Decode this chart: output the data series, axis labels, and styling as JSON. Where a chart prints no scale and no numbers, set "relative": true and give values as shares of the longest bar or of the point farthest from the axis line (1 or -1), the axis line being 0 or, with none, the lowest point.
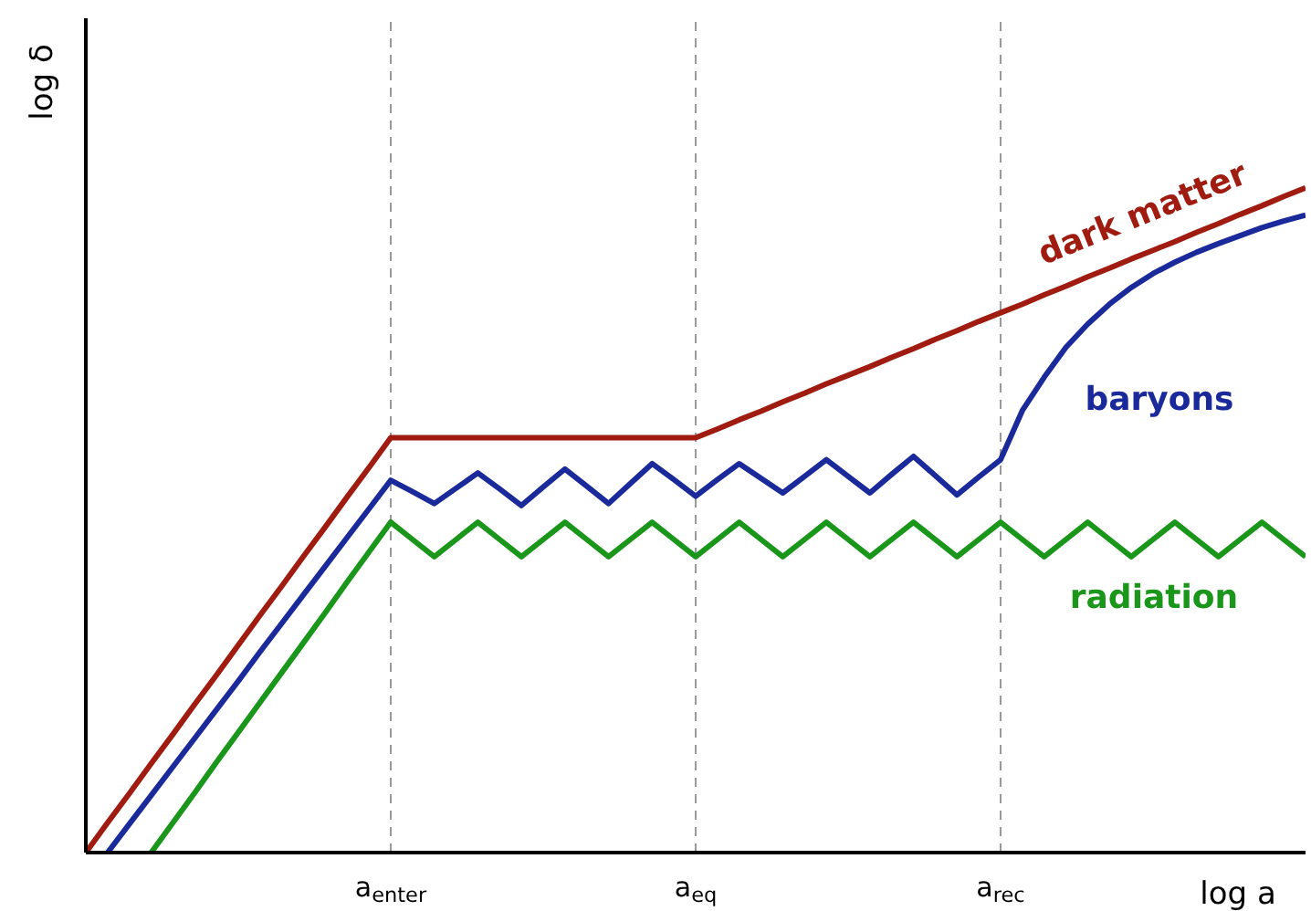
{
  "chart_data": {
    "type": "line",
    "relative": true,
    "xlabel": "log a",
    "ylabel": "log δ",
    "categories": [
      null,
      null,
      null,
      null,
      null,
      null,
      null,
      null,
      null,
      null,
      null,
      null,
      null,
      null,
      "a$_{enter}$",
      null,
      null,
      null,
      null,
      null,
      null,
      null,
      null,
      null,
      null,
      null,
      null,
      null,
      "a$_{eq}$",
      null,
      null,
      null,
      null,
      null,
      null,
      null,
      null,
      null,
      null,
      null,
      null,
      null,
      "a$_{rec}$",
      null,
      null,
      null,
      null,
      null,
      null,
      null,
      null,
      null,
      null,
      null,
      null,
      null,
      null
    ],
    "ref_lines": [
      {
        "axis": "x",
        "value": "a$_{enter}$",
        "color": "#999999",
        "line_style": "dashed"
      },
      {
        "axis": "x",
        "value": "a$_{eq}$",
        "color": "#999999",
        "line_style": "dashed"
      },
      {
        "axis": "x",
        "value": "a$_{rec}$",
        "color": "#999999",
        "line_style": "dashed"
      }
    ],
    "series": [
      {
        "name": "dark matter",
        "color": "#a01c10",
        "values": [
          0,
          0.045,
          0.089,
          0.134,
          0.178,
          0.223,
          0.267,
          0.312,
          0.357,
          0.401,
          0.446,
          0.49,
          0.535,
          0.579,
          0.624,
          0.624,
          0.624,
          0.624,
          0.624,
          0.624,
          0.624,
          0.624,
          0.624,
          0.624,
          0.624,
          0.624,
          0.624,
          0.624,
          0.624,
          0.637,
          0.651,
          0.664,
          0.678,
          0.691,
          0.705,
          0.718,
          0.731,
          0.745,
          0.758,
          0.772,
          0.785,
          0.799,
          0.812,
          0.825,
          0.839,
          0.852,
          0.866,
          0.879,
          0.893,
          0.906,
          0.919,
          0.933,
          0.946,
          0.96,
          0.973,
          0.987,
          1.0
        ]
      },
      {
        "name": "baryons",
        "color": "#1a2a9a",
        "values": [
          null,
          0,
          0.043,
          0.086,
          0.129,
          0.172,
          0.215,
          0.258,
          0.302,
          0.345,
          0.388,
          0.431,
          0.474,
          0.517,
          0.56,
          0.543,
          0.525,
          0.548,
          0.571,
          0.547,
          0.522,
          0.55,
          0.577,
          0.551,
          0.525,
          0.555,
          0.585,
          0.561,
          0.536,
          0.561,
          0.585,
          0.563,
          0.541,
          0.566,
          0.591,
          0.566,
          0.541,
          0.569,
          0.596,
          0.567,
          0.538,
          0.565,
          0.591,
          0.665,
          0.715,
          0.76,
          0.795,
          0.825,
          0.85,
          0.871,
          0.888,
          0.903,
          0.916,
          0.928,
          0.94,
          0.95,
          0.959
        ]
      },
      {
        "name": "radiation",
        "color": "#1a961a",
        "values": [
          null,
          null,
          null,
          0,
          0.045,
          0.09,
          0.136,
          0.181,
          0.226,
          0.271,
          0.316,
          0.361,
          0.407,
          0.452,
          0.497,
          0.471,
          0.445,
          0.471,
          0.497,
          0.471,
          0.445,
          0.471,
          0.497,
          0.471,
          0.445,
          0.471,
          0.497,
          0.471,
          0.445,
          0.471,
          0.497,
          0.471,
          0.445,
          0.471,
          0.497,
          0.471,
          0.445,
          0.471,
          0.497,
          0.471,
          0.445,
          0.471,
          0.497,
          0.471,
          0.445,
          0.471,
          0.497,
          0.471,
          0.445,
          0.471,
          0.497,
          0.471,
          0.445,
          0.471,
          0.497,
          0.471,
          0.445
        ]
      }
    ]
  }
}
